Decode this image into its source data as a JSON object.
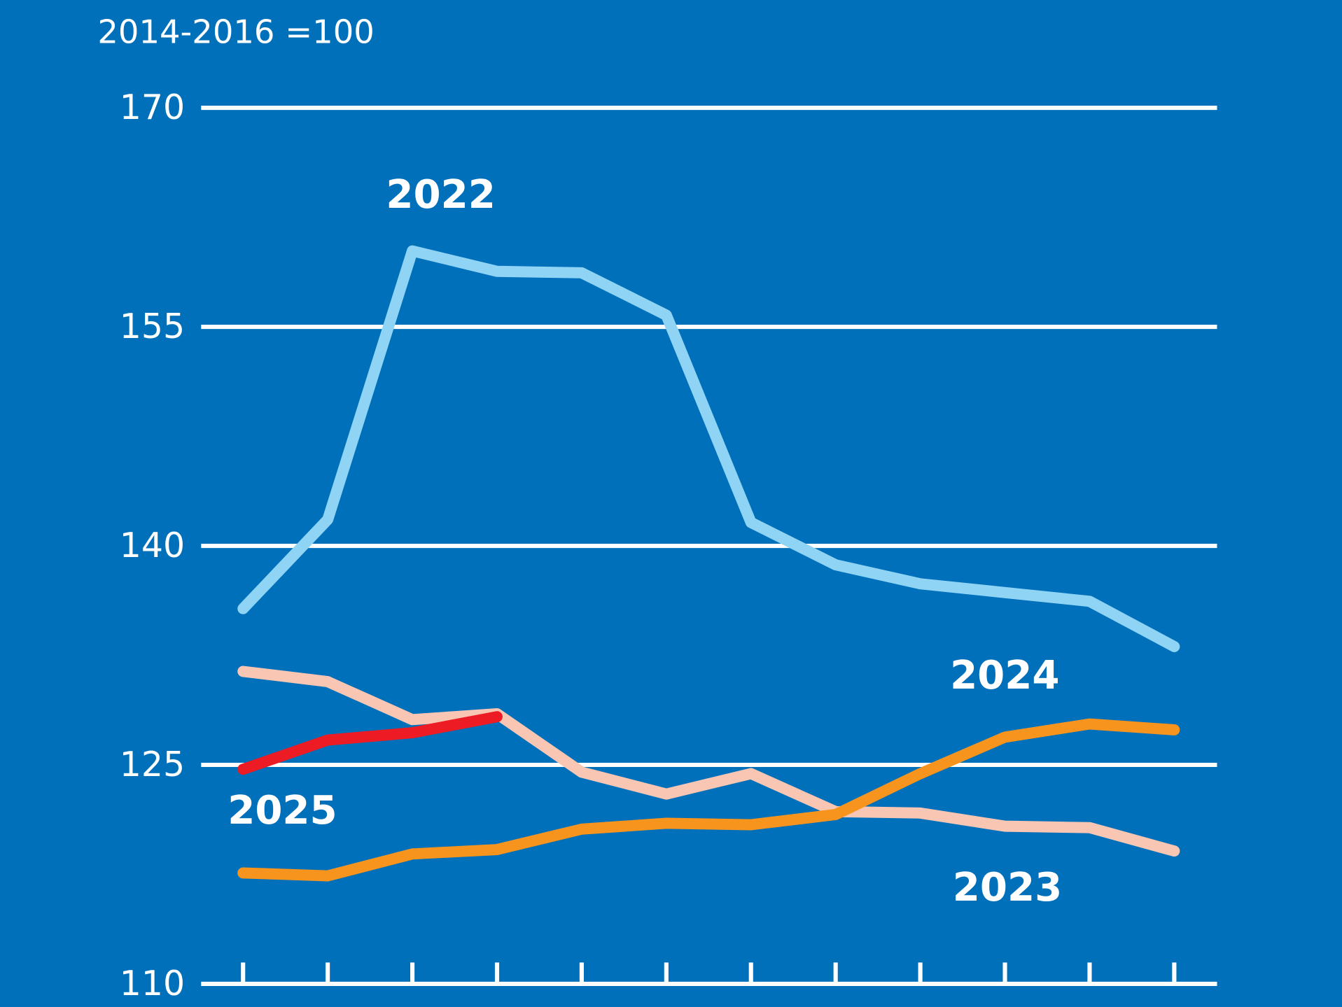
{
  "chart_data": {
    "type": "line",
    "y_label": "2014-2016 =100",
    "background": "#0070bb",
    "categories": [
      null,
      null,
      null,
      null,
      null,
      null,
      null,
      null,
      null,
      null,
      null,
      null
    ],
    "series": [
      {
        "name": "2022",
        "color": "#8fd4f5",
        "values": [
          135.7,
          141.8,
          160.2,
          158.8,
          158.7,
          155.8,
          141.6,
          138.7,
          137.4,
          136.8,
          136.2,
          133.1
        ]
      },
      {
        "name": "2023",
        "color": "#f8c6b2",
        "values": [
          131.4,
          130.7,
          128.1,
          128.5,
          124.5,
          123.0,
          124.4,
          121.8,
          121.7,
          120.8,
          120.7,
          119.1
        ]
      },
      {
        "name": "2024",
        "color": "#f7941d",
        "values": [
          117.6,
          117.4,
          118.9,
          119.2,
          120.6,
          121.0,
          120.9,
          121.6,
          124.4,
          126.9,
          127.8,
          127.4
        ]
      },
      {
        "name": "2025",
        "color": "#ed1c24",
        "values": [
          124.7,
          126.7,
          127.2,
          128.3,
          null,
          null,
          null,
          null,
          null,
          null,
          null,
          null
        ]
      }
    ],
    "ylim": [
      110,
      170
    ],
    "yticks": [
      110,
      125,
      140,
      155,
      170
    ],
    "grid": true
  }
}
